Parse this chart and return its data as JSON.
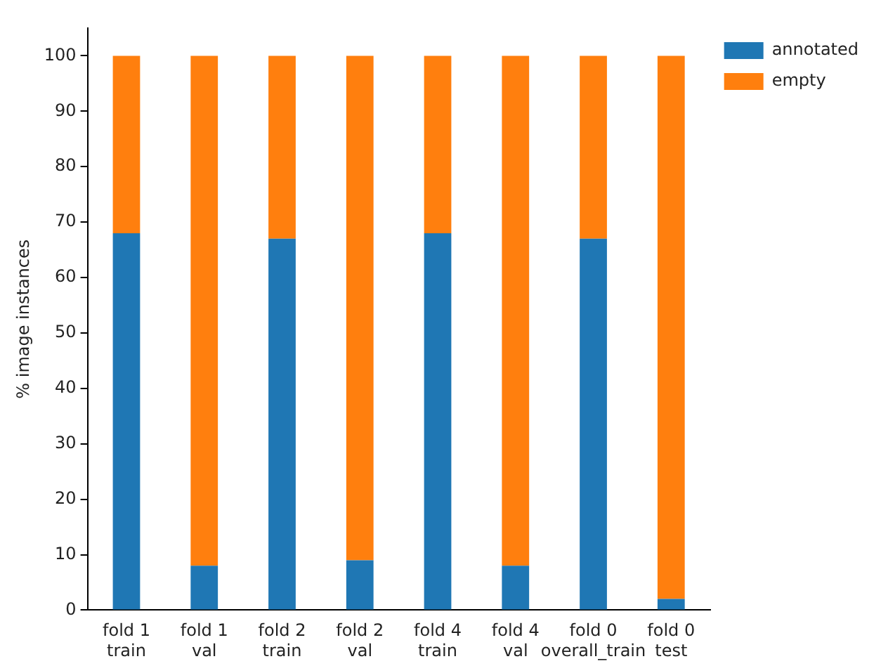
{
  "chart_data": {
    "type": "bar",
    "stacked": true,
    "ylabel": "% image instances",
    "categories": [
      "fold 1\ntrain",
      "fold 1\nval",
      "fold 2\ntrain",
      "fold 2\nval",
      "fold 4\ntrain",
      "fold 4\nval",
      "fold 0\noverall_train",
      "fold 0\ntest"
    ],
    "series": [
      {
        "name": "annotated",
        "color": "#1f77b4",
        "values": [
          68,
          8,
          67,
          9,
          68,
          8,
          67,
          2
        ]
      },
      {
        "name": "empty",
        "color": "#ff7f0e",
        "values": [
          32,
          92,
          33,
          91,
          32,
          92,
          33,
          98
        ]
      }
    ],
    "ylim": [
      0,
      105
    ],
    "yticks": [
      0,
      10,
      20,
      30,
      40,
      50,
      60,
      70,
      80,
      90,
      100
    ],
    "grid": false,
    "legend": "top right"
  }
}
